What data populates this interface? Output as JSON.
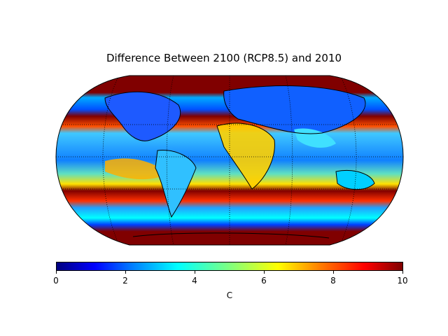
{
  "title": "Difference Between 2100 (RCP8.5) and 2010",
  "colorbar": {
    "label": "C",
    "min": 0,
    "max": 10,
    "ticks": [
      "0",
      "2",
      "4",
      "6",
      "8",
      "10"
    ],
    "colormap": "jet",
    "orientation": "horizontal"
  },
  "map": {
    "projection": "robinson",
    "coastlines": true,
    "graticule": "dotted",
    "land_sea_colors": {
      "ocean_warm": "#800000",
      "cool": "#1e64ff",
      "mid": "#00c8ff",
      "warm": "#ffd200"
    }
  }
}
